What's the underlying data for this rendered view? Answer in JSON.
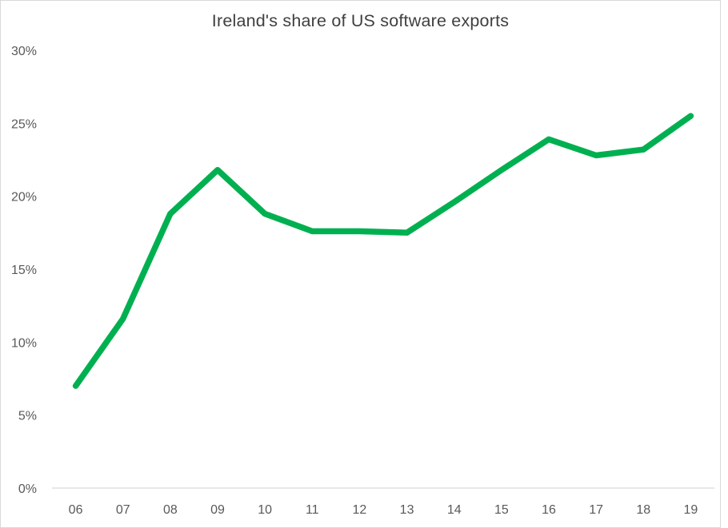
{
  "chart_data": {
    "type": "line",
    "title": "Ireland's share of US software exports",
    "categories": [
      "06",
      "07",
      "08",
      "09",
      "10",
      "11",
      "12",
      "13",
      "14",
      "15",
      "16",
      "17",
      "18",
      "19"
    ],
    "values": [
      7.0,
      11.6,
      18.8,
      21.8,
      18.8,
      17.6,
      17.6,
      17.5,
      19.6,
      21.8,
      23.9,
      22.8,
      23.2,
      25.5
    ],
    "xlabel": "",
    "ylabel": "",
    "ylim": [
      0,
      30
    ],
    "ytick_step": 5,
    "ytick_suffix": "%",
    "yticks": [
      "0%",
      "5%",
      "10%",
      "15%",
      "20%",
      "25%",
      "30%"
    ],
    "grid": false,
    "legend_position": "none",
    "line_color": "#00B050",
    "axis_line_color": "#D9D9D9",
    "tick_label_color": "#595959",
    "title_color": "#404040"
  }
}
